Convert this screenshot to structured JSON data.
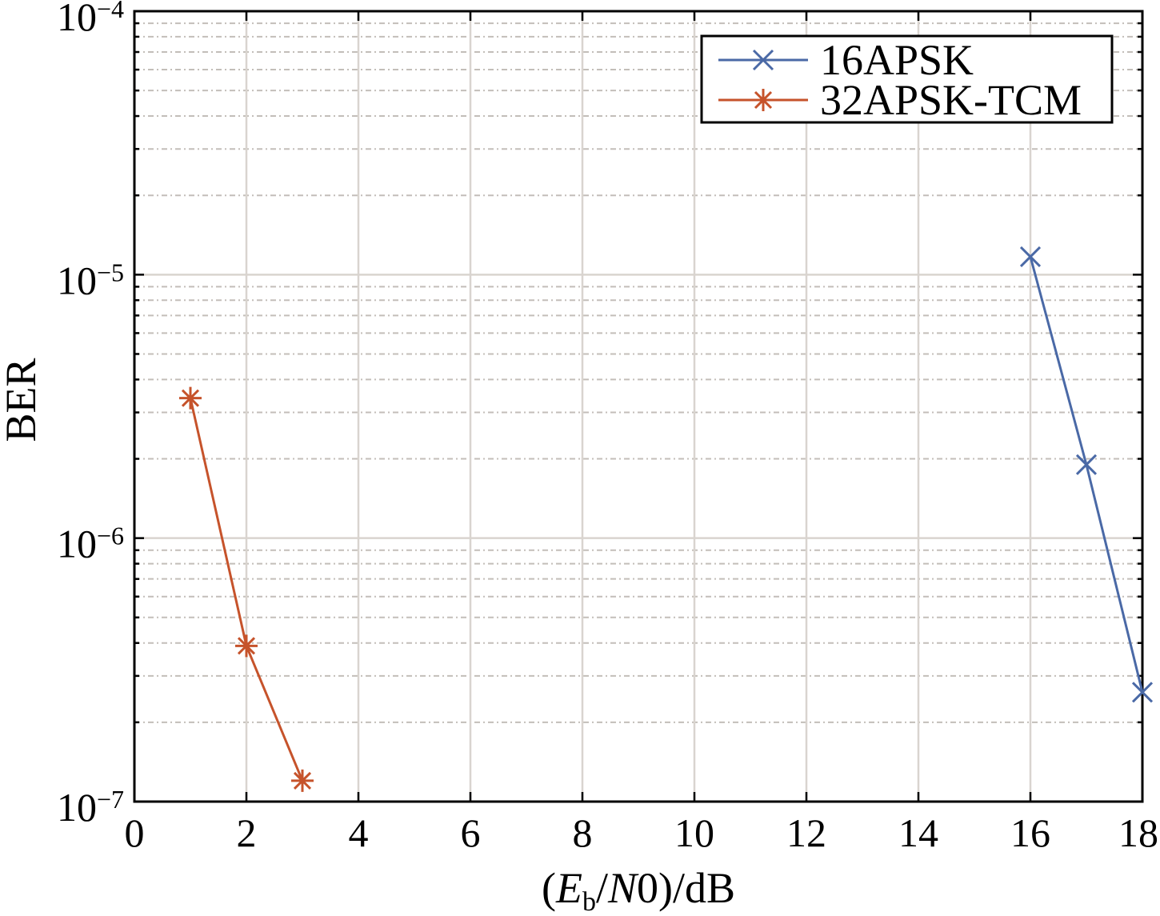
{
  "chart_data": {
    "type": "line",
    "xlabel_parts": [
      "(",
      "E",
      "b",
      "/",
      "N",
      "0)/dB"
    ],
    "ylabel": "BER",
    "xlim": [
      0,
      18
    ],
    "ylim": [
      1e-07,
      0.0001
    ],
    "xscale": "linear",
    "yscale": "log",
    "grid": true,
    "minor_grid": true,
    "xticks": [
      0,
      2,
      4,
      6,
      8,
      10,
      12,
      14,
      16,
      18
    ],
    "xtick_labels": [
      "0",
      "2",
      "4",
      "6",
      "8",
      "10",
      "12",
      "14",
      "16",
      "18"
    ],
    "yticks": [
      {
        "value": 1e-07,
        "base": "10",
        "exp": "−7"
      },
      {
        "value": 1e-06,
        "base": "10",
        "exp": "−6"
      },
      {
        "value": 1e-05,
        "base": "10",
        "exp": "−5"
      },
      {
        "value": 0.0001,
        "base": "10",
        "exp": "−4"
      }
    ],
    "legend_location": "top-right",
    "series": [
      {
        "name": "16APSK",
        "color": "#4a69a6",
        "marker": "x",
        "x": [
          16,
          17,
          18
        ],
        "y": [
          1.17e-05,
          1.9e-06,
          2.6e-07
        ]
      },
      {
        "name": "32APSK-TCM",
        "color": "#c6532b",
        "marker": "asterisk",
        "x": [
          1,
          2,
          3
        ],
        "y": [
          3.4e-06,
          3.9e-07,
          1.2e-07
        ]
      }
    ]
  }
}
